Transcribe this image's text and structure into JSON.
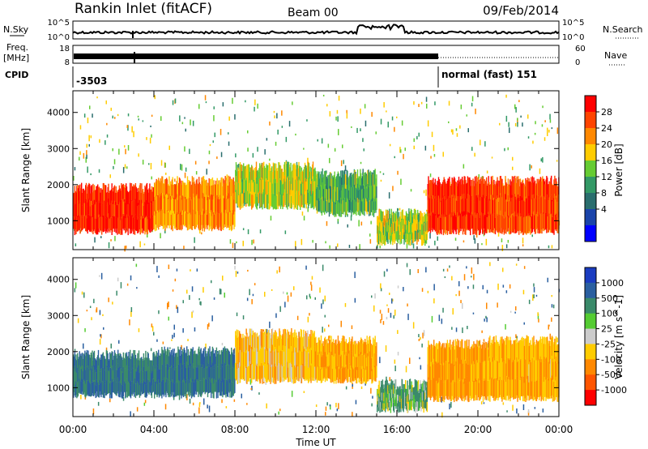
{
  "header": {
    "station": "Rankin Inlet (fitACF)",
    "beam": "Beam 00",
    "date": "09/Feb/2014"
  },
  "noise_panel": {
    "left_label": "N.Sky",
    "right_label": "N.Search",
    "left_ticks": [
      "10^5",
      "10^0"
    ],
    "right_ticks": [
      "10^5",
      "10^0"
    ]
  },
  "freq_panel": {
    "left_label_line1": "Freq.",
    "left_label_line2": "[MHz]",
    "right_label": "Nave",
    "left_ticks": [
      "18",
      "8"
    ],
    "right_ticks": [
      "60",
      "0"
    ]
  },
  "cpid_panel": {
    "label": "CPID",
    "segments": [
      {
        "label": "-3503",
        "start_hour": 0
      },
      {
        "label": "normal (fast) 151",
        "start_hour": 18
      }
    ]
  },
  "power_panel": {
    "ylabel": "Slant Range [km]",
    "colorbar_label": "Power [dB]",
    "colorbar_ticks": [
      "28",
      "24",
      "20",
      "16",
      "12",
      "8",
      "4"
    ],
    "colorbar_colors": [
      "#ff0000",
      "#ff4400",
      "#ff8800",
      "#ffcc00",
      "#66cc33",
      "#339966",
      "#2a6e6e",
      "#1a44aa",
      "#0000ff"
    ]
  },
  "velocity_panel": {
    "ylabel": "Slant Range [km]",
    "colorbar_label": "Velocity [m s^-1]",
    "colorbar_ticks": [
      "1000",
      "500",
      "100",
      "25",
      "-25",
      "-100",
      "-500",
      "-1000"
    ],
    "colorbar_colors": [
      "#1a3cc0",
      "#2a5fa0",
      "#3a8a6a",
      "#55cc33",
      "#cccccc",
      "#ffcc00",
      "#ff8800",
      "#ff5500",
      "#ff0000"
    ]
  },
  "xaxis": {
    "label": "Time UT",
    "ticks": [
      "00:00",
      "04:00",
      "08:00",
      "12:00",
      "16:00",
      "20:00",
      "00:00"
    ]
  },
  "chart_data": {
    "type": "heatmap",
    "title": "Rankin Inlet (fitACF)",
    "xlabel": "Time UT",
    "ylabel": "Slant Range [km]",
    "xlim_hours": [
      0,
      24
    ],
    "ylim_km": [
      200,
      4600
    ],
    "y_ticks_km": [
      1000,
      2000,
      3000,
      4000
    ],
    "power_bands": [
      {
        "from_hour": 0,
        "to_hour": 4,
        "range_km": [
          700,
          1900
        ],
        "level_db": 26
      },
      {
        "from_hour": 4,
        "to_hour": 8,
        "range_km": [
          800,
          2100
        ],
        "level_db": 20
      },
      {
        "from_hour": 8,
        "to_hour": 12,
        "range_km": [
          1400,
          2500
        ],
        "level_db": 14
      },
      {
        "from_hour": 12,
        "to_hour": 15,
        "range_km": [
          1200,
          2300
        ],
        "level_db": 10
      },
      {
        "from_hour": 15,
        "to_hour": 17.5,
        "range_km": [
          400,
          1200
        ],
        "level_db": 14
      },
      {
        "from_hour": 17.5,
        "to_hour": 20.5,
        "range_km": [
          700,
          2100
        ],
        "level_db": 26
      },
      {
        "from_hour": 20.5,
        "to_hour": 24,
        "range_km": [
          700,
          2100
        ],
        "level_db": 24
      }
    ],
    "velocity_bands": [
      {
        "from_hour": 0,
        "to_hour": 4,
        "range_km": [
          800,
          1900
        ],
        "velocity_ms": 300
      },
      {
        "from_hour": 4,
        "to_hour": 8,
        "range_km": [
          800,
          2000
        ],
        "velocity_ms": 300
      },
      {
        "from_hour": 8,
        "to_hour": 12,
        "range_km": [
          1200,
          2500
        ],
        "velocity_ms": -200
      },
      {
        "from_hour": 12,
        "to_hour": 15,
        "range_km": [
          1200,
          2300
        ],
        "velocity_ms": -300
      },
      {
        "from_hour": 15,
        "to_hour": 17.5,
        "range_km": [
          400,
          1100
        ],
        "velocity_ms": 80
      },
      {
        "from_hour": 17.5,
        "to_hour": 20.5,
        "range_km": [
          700,
          2200
        ],
        "velocity_ms": -350
      },
      {
        "from_hour": 20.5,
        "to_hour": 24,
        "range_km": [
          700,
          2300
        ],
        "velocity_ms": -250
      }
    ]
  }
}
